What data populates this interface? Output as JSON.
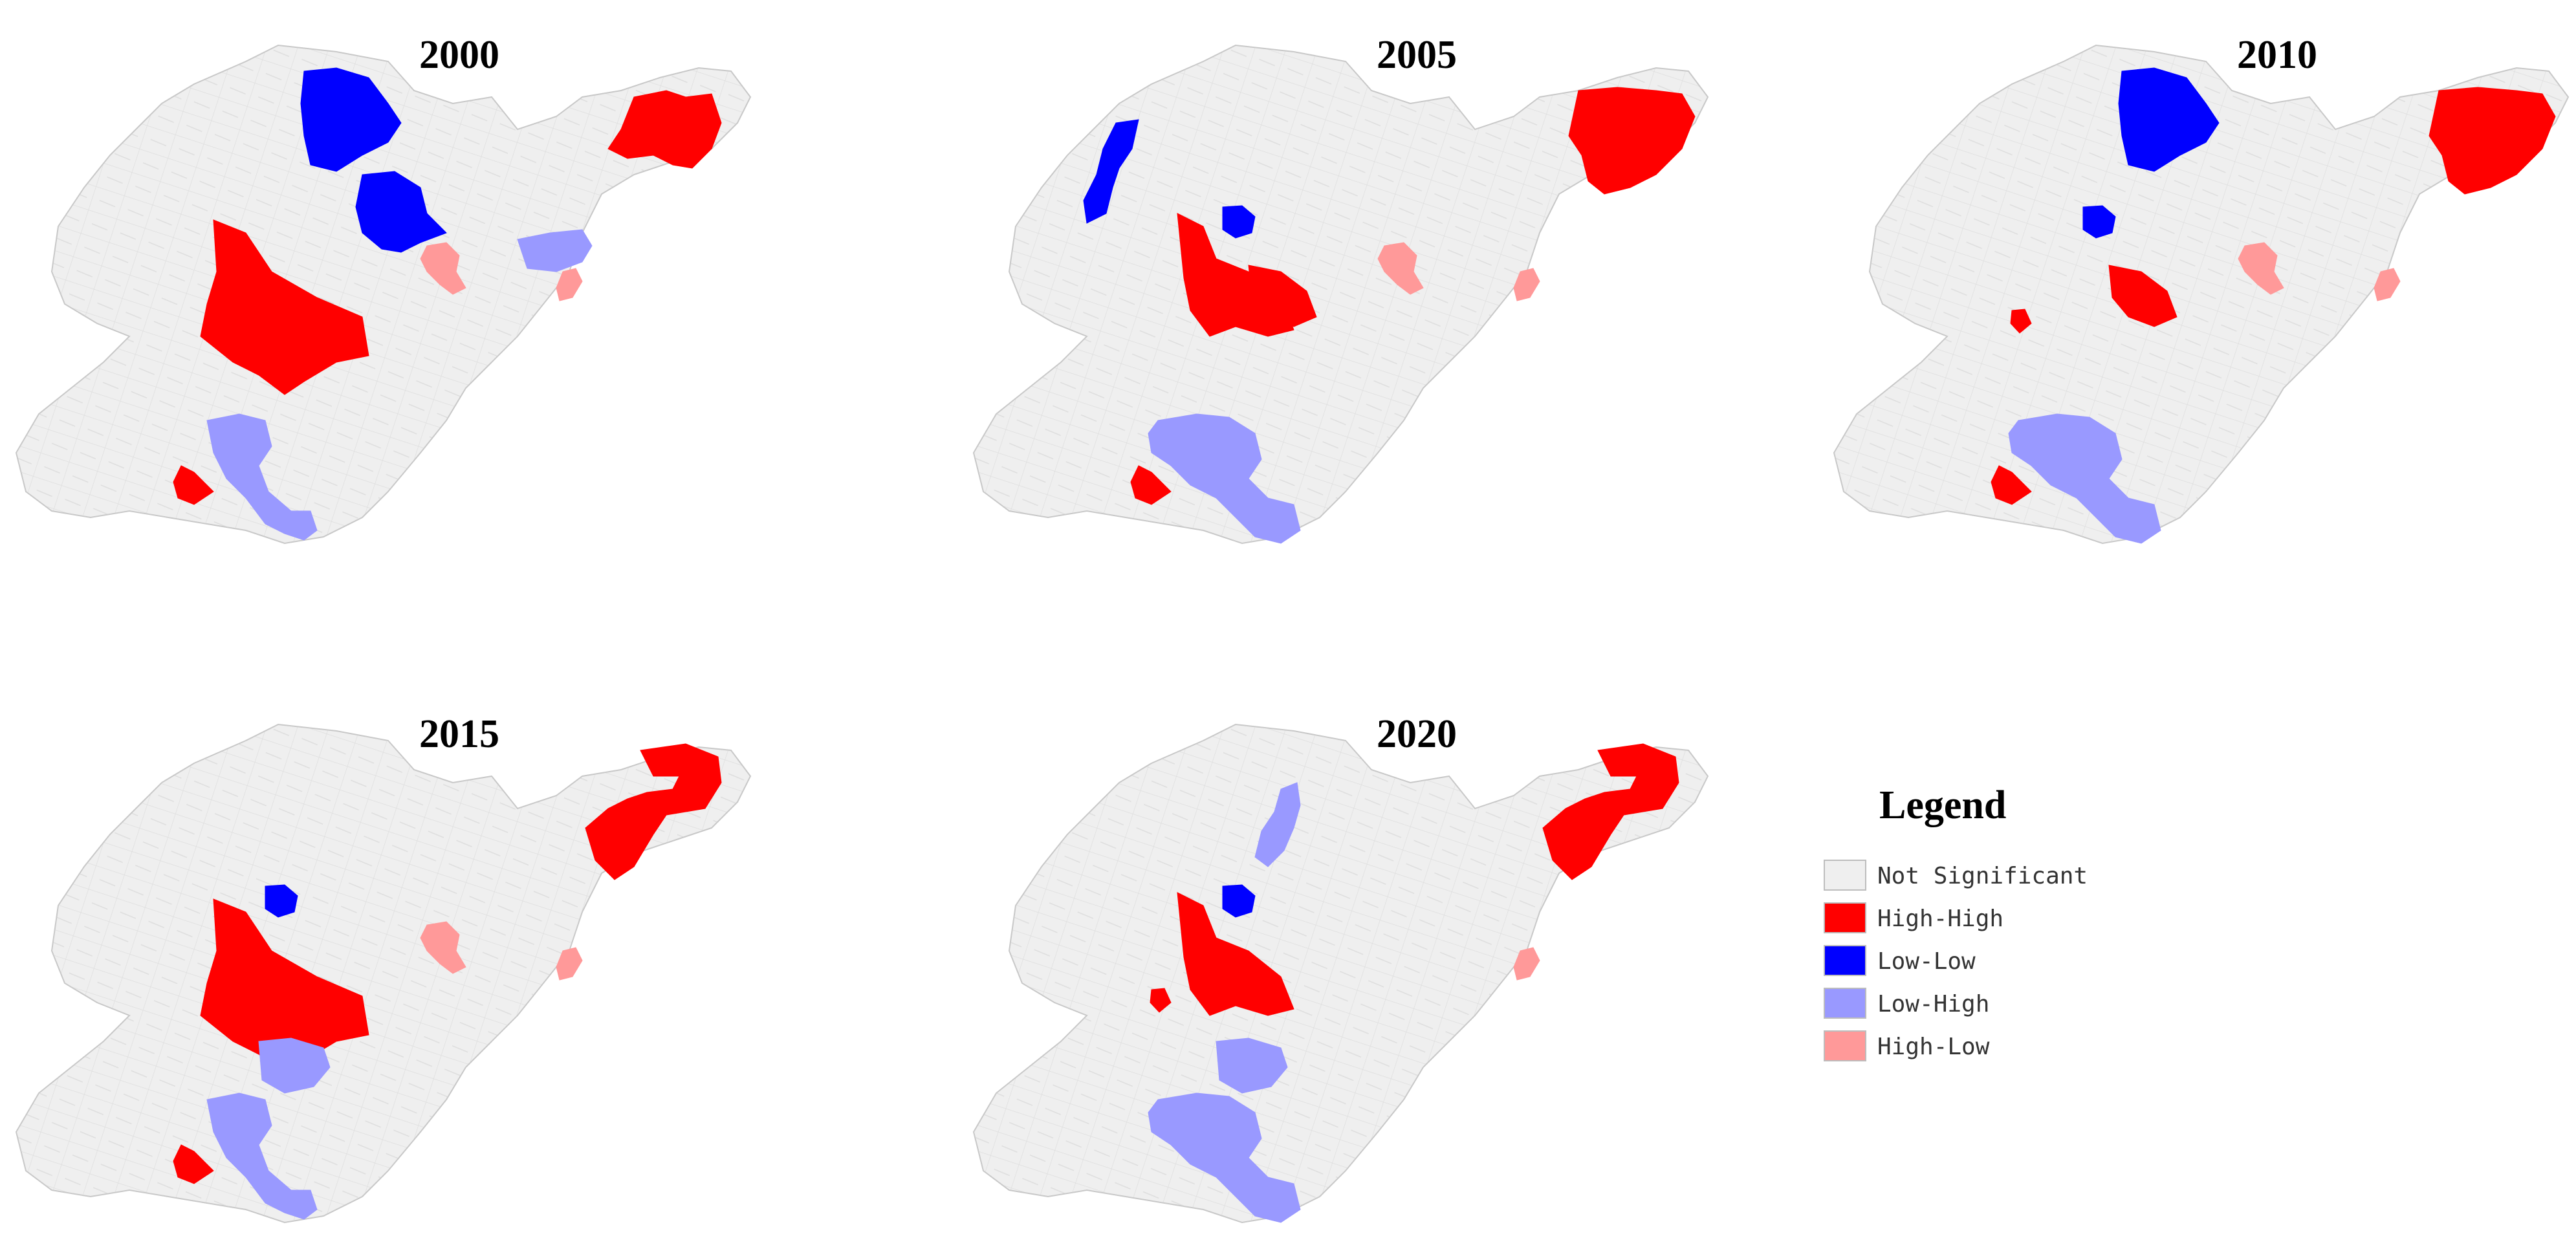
{
  "colors": {
    "not_significant": "#efefef",
    "high_high": "#ff0000",
    "low_low": "#0000ff",
    "low_high": "#9999ff",
    "high_low": "#ff9999",
    "boundary": "#c8c8c8"
  },
  "maps": [
    {
      "year": "2000",
      "clusters": [
        "hh-central-large",
        "hh-east-tip",
        "hh-southwest-small",
        "ll-north-1",
        "ll-north-2",
        "lh-south-chain",
        "lh-east-coast",
        "hl-center-east",
        "hl-east-coast"
      ]
    },
    {
      "year": "2005",
      "clusters": [
        "hh-east-tip-large",
        "hh-central-mid",
        "hh-central-small",
        "hh-southwest-small",
        "ll-north-strip",
        "ll-north-small",
        "lh-south-chain-wide",
        "hl-center-east",
        "hl-east-coast"
      ]
    },
    {
      "year": "2010",
      "clusters": [
        "hh-east-tip-large",
        "hh-central-small",
        "hh-center-tiny",
        "hh-southwest-small",
        "ll-north-1",
        "ll-north-small",
        "lh-south-chain-wide",
        "hl-center-east",
        "hl-east-coast"
      ]
    },
    {
      "year": "2015",
      "clusters": [
        "hh-central-large",
        "hh-east-tip-ring",
        "hh-southwest-small",
        "ll-north-small",
        "lh-center-below",
        "lh-south-chain",
        "hl-center-east",
        "hl-east-coast"
      ]
    },
    {
      "year": "2020",
      "clusters": [
        "hh-central-mid",
        "hh-center-tiny",
        "hh-east-tip-ring",
        "ll-north-small",
        "lh-north-strip",
        "lh-center-below",
        "lh-south-chain-wide",
        "hl-east-coast"
      ]
    }
  ],
  "legend": {
    "title": "Legend",
    "items": [
      {
        "label": "Not Significant",
        "color": "#efefef"
      },
      {
        "label": "High-High",
        "color": "#ff0000"
      },
      {
        "label": "Low-Low",
        "color": "#0000ff"
      },
      {
        "label": "Low-High",
        "color": "#9999ff"
      },
      {
        "label": "High-Low",
        "color": "#ff9999"
      }
    ]
  }
}
